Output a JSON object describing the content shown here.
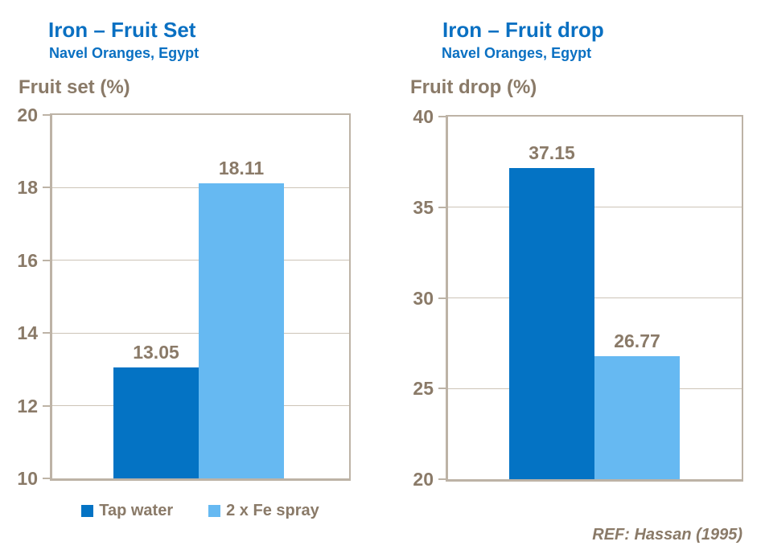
{
  "page": {
    "background": "#ffffff"
  },
  "colors": {
    "title_blue": "#0a70c2",
    "series_dark_blue": "#0473c4",
    "series_light_blue": "#66b9f2",
    "label_brown": "#8a7a68",
    "gridline_tan": "#cdc4b7",
    "axis_tan": "#bdb3a6"
  },
  "legend": {
    "position": "below-left-chart",
    "items": [
      {
        "label": "Tap water",
        "color": "#0473c4",
        "swatch_icon": "square-swatch-icon"
      },
      {
        "label": "2 x Fe spray",
        "color": "#66b9f2",
        "swatch_icon": "square-swatch-icon"
      }
    ]
  },
  "reference": "REF: Hassan (1995)",
  "chart_data": [
    {
      "type": "bar",
      "title": "Iron – Fruit Set",
      "subtitle": "Navel Oranges, Egypt",
      "ylabel": "Fruit set (%)",
      "xlabel": "",
      "categories": [
        "Tap water",
        "2 x Fe spray"
      ],
      "series": [
        {
          "name": "Tap water",
          "value": 13.05,
          "color": "#0473c4"
        },
        {
          "name": "2 x Fe spray",
          "value": 18.11,
          "color": "#66b9f2"
        }
      ],
      "value_labels": [
        "13.05",
        "18.11"
      ],
      "ylim": [
        10,
        20
      ],
      "yticks": [
        10,
        12,
        14,
        16,
        18,
        20
      ],
      "grid": true,
      "legend_position": "bottom"
    },
    {
      "type": "bar",
      "title": "Iron – Fruit drop",
      "subtitle": "Navel Oranges, Egypt",
      "ylabel": "Fruit drop (%)",
      "xlabel": "",
      "categories": [
        "Tap water",
        "2 x Fe spray"
      ],
      "series": [
        {
          "name": "Tap water",
          "value": 37.15,
          "color": "#0473c4"
        },
        {
          "name": "2 x Fe spray",
          "value": 26.77,
          "color": "#66b9f2"
        }
      ],
      "value_labels": [
        "37.15",
        "26.77"
      ],
      "ylim": [
        20,
        40
      ],
      "yticks": [
        20,
        25,
        30,
        35,
        40
      ],
      "grid": true,
      "legend_position": "none"
    }
  ]
}
